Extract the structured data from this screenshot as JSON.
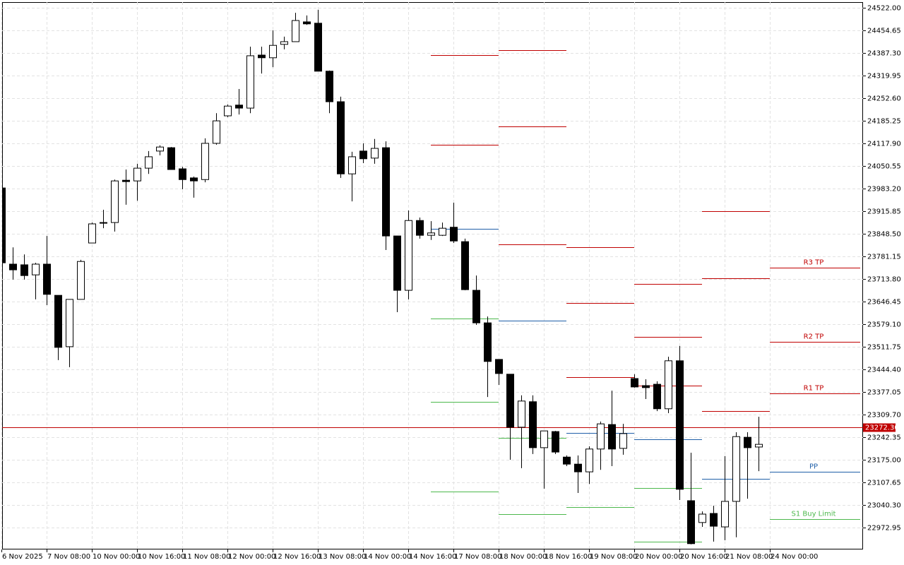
{
  "chart_data": {
    "type": "candlestick",
    "categories": [
      "6 Nov 2025",
      null,
      null,
      null,
      "7 Nov 08:00",
      null,
      null,
      null,
      "10 Nov 00:00",
      null,
      null,
      null,
      "10 Nov 16:00",
      null,
      null,
      null,
      "11 Nov 08:00",
      null,
      null,
      null,
      "12 Nov 00:00",
      null,
      null,
      null,
      "12 Nov 16:00",
      null,
      null,
      null,
      "13 Nov 08:00",
      null,
      null,
      null,
      "14 Nov 00:00",
      null,
      null,
      null,
      "14 Nov 16:00",
      null,
      null,
      null,
      "17 Nov 08:00",
      null,
      null,
      null,
      "18 Nov 00:00",
      null,
      null,
      null,
      "18 Nov 16:00",
      null,
      null,
      null,
      "19 Nov 08:00",
      null,
      null,
      null,
      "20 Nov 00:00",
      null,
      null,
      null,
      "20 Nov 16:00",
      null,
      null,
      null,
      "21 Nov 08:00",
      null,
      null,
      null,
      "24 Nov 00:00"
    ],
    "open": [
      23985,
      23758,
      23756,
      23726,
      23758,
      23665,
      23512,
      23653,
      23821,
      23880,
      23882,
      24008,
      24006,
      24044,
      24095,
      24105,
      24042,
      24015,
      24010,
      24118,
      24200,
      24232,
      24223,
      24381,
      24373,
      24413,
      24421,
      24480,
      24476,
      24333,
      24242,
      24027,
      24095,
      24074,
      24105,
      23842,
      23680,
      23888,
      23844,
      23844,
      23868,
      23825,
      23680,
      23583,
      23474,
      23430,
      23272,
      23348,
      23211,
      23259,
      23183,
      23162,
      23139,
      23207,
      23280,
      23209,
      23417,
      23396,
      23400,
      23327,
      23470,
      23053,
      22988,
      23015,
      22975,
      23051,
      23242,
      23213,
      null
    ],
    "high": [
      23985,
      23808,
      23787,
      23762,
      23842,
      23665,
      23653,
      23771,
      23882,
      23920,
      24010,
      24040,
      24057,
      24095,
      24112,
      24107,
      24048,
      24019,
      24133,
      24208,
      24234,
      24280,
      24406,
      24406,
      24455,
      24436,
      24507,
      24499,
      24516,
      24335,
      24257,
      24093,
      24118,
      24131,
      24124,
      23842,
      23918,
      23897,
      23886,
      23882,
      23941,
      23834,
      23724,
      23602,
      23474,
      23430,
      23367,
      23367,
      23261,
      23261,
      23188,
      23188,
      23215,
      23289,
      23381,
      23282,
      23430,
      23415,
      23409,
      23482,
      23514,
      23196,
      23021,
      23038,
      23186,
      23257,
      23257,
      23303,
      null
    ],
    "low": [
      23762,
      23712,
      23712,
      23653,
      23636,
      23472,
      23451,
      23653,
      23821,
      23865,
      23855,
      23935,
      23947,
      24027,
      24082,
      24040,
      23981,
      23956,
      24002,
      24114,
      24196,
      24204,
      24208,
      24326,
      24345,
      24398,
      24421,
      24471,
      24333,
      24208,
      24015,
      23945,
      24059,
      24057,
      23800,
      23615,
      23653,
      23834,
      23830,
      23842,
      23821,
      23680,
      23577,
      23362,
      23398,
      23175,
      23150,
      23192,
      23089,
      23192,
      23156,
      23076,
      23103,
      23145,
      23156,
      23190,
      23390,
      23356,
      23320,
      23314,
      23055,
      22923,
      22975,
      22931,
      22935,
      22944,
      23059,
      23141,
      null
    ],
    "close": [
      23762,
      23741,
      23724,
      23758,
      23668,
      23510,
      23653,
      23766,
      23878,
      23882,
      24006,
      24004,
      24044,
      24078,
      24107,
      24040,
      24010,
      24006,
      24118,
      24185,
      24229,
      24223,
      24379,
      24373,
      24410,
      24421,
      24484,
      24474,
      24333,
      24242,
      24027,
      24078,
      24072,
      24103,
      23842,
      23680,
      23888,
      23844,
      23851,
      23865,
      23827,
      23682,
      23583,
      23468,
      23432,
      23272,
      23350,
      23211,
      23261,
      23198,
      23162,
      23139,
      23207,
      23282,
      23207,
      23253,
      23392,
      23390,
      23327,
      23470,
      23087,
      22925,
      23013,
      22977,
      23051,
      23244,
      23211,
      23221,
      null
    ],
    "bull_color": "#ffffff",
    "bear_color": "#000000",
    "ylim": [
      22907.7,
      24538.84
    ],
    "yticks": [
      {
        "value": 24522,
        "label": "24522.00"
      },
      24454.65,
      {
        "value": 24387.3,
        "label": "24387.30"
      },
      24319.95,
      {
        "value": 24252.6,
        "label": "24252.60"
      },
      24185.25,
      {
        "value": 24117.9,
        "label": "24117.90"
      },
      24050.55,
      {
        "value": 23983.2,
        "label": "23983.20"
      },
      23915.85,
      {
        "value": 23848.5,
        "label": "23848.50"
      },
      23781.15,
      {
        "value": 23713.8,
        "label": "23713.80"
      },
      23646.45,
      {
        "value": 23579.1,
        "label": "23579.10"
      },
      23511.75,
      {
        "value": 23444.4,
        "label": "23444.40"
      },
      23377.05,
      {
        "value": 23309.7,
        "label": "23309.70"
      },
      23242.35,
      {
        "value": 23175,
        "label": "23175.00"
      },
      23107.65,
      {
        "value": 23040.3,
        "label": "23040.30"
      },
      22972.95
    ],
    "grid": true,
    "current_price": {
      "value": 23272.3,
      "label": "23272.30"
    },
    "current_price_color": "#c00000",
    "level_segments": [
      {
        "start": 38,
        "levels": [
          {
            "value": 24381,
            "color": "#c00000"
          },
          {
            "value": 24114,
            "color": "#c00000"
          },
          {
            "value": 23863,
            "color": "#1f5fa8"
          },
          {
            "value": 23596,
            "color": "#4cb84c"
          },
          {
            "value": 23348,
            "color": "#4cb84c"
          },
          {
            "value": 23080,
            "color": "#4cb84c"
          }
        ]
      },
      {
        "start": 44,
        "levels": [
          {
            "value": 24396,
            "color": "#c00000"
          },
          {
            "value": 24168,
            "color": "#c00000"
          },
          {
            "value": 23817,
            "color": "#c00000"
          },
          {
            "value": 23590,
            "color": "#1f5fa8"
          },
          {
            "value": 23240,
            "color": "#4cb84c"
          },
          {
            "value": 23013,
            "color": "#4cb84c"
          }
        ]
      },
      {
        "start": 50,
        "levels": [
          {
            "value": 23808,
            "color": "#c00000"
          },
          {
            "value": 23642,
            "color": "#c00000"
          },
          {
            "value": 23421,
            "color": "#c00000"
          },
          {
            "value": 23255,
            "color": "#1f5fa8"
          },
          {
            "value": 23034,
            "color": "#4cb84c"
          }
        ]
      },
      {
        "start": 56,
        "levels": [
          {
            "value": 23699,
            "color": "#c00000"
          },
          {
            "value": 23541,
            "color": "#c00000"
          },
          {
            "value": 23396,
            "color": "#c00000"
          },
          {
            "value": 23236,
            "color": "#1f5fa8"
          },
          {
            "value": 23091,
            "color": "#4cb84c"
          },
          {
            "value": 22931,
            "color": "#4cb84c"
          }
        ]
      },
      {
        "start": 62,
        "levels": [
          {
            "value": 23916,
            "color": "#c00000"
          },
          {
            "value": 23716,
            "color": "#c00000"
          },
          {
            "value": 23320,
            "color": "#c00000"
          },
          {
            "value": 23118,
            "color": "#1f5fa8"
          }
        ]
      },
      {
        "start": 68,
        "levels": [
          {
            "value": 23747,
            "color": "#c00000",
            "label": "R3 TP"
          },
          {
            "value": 23527,
            "color": "#c00000",
            "label": "R2 TP"
          },
          {
            "value": 23373,
            "color": "#c00000",
            "label": "R1 TP"
          },
          {
            "value": 23139,
            "color": "#1f5fa8",
            "label": "PP"
          },
          {
            "value": 22998,
            "color": "#4cb84c",
            "label": "S1 Buy Limit"
          }
        ]
      }
    ]
  }
}
